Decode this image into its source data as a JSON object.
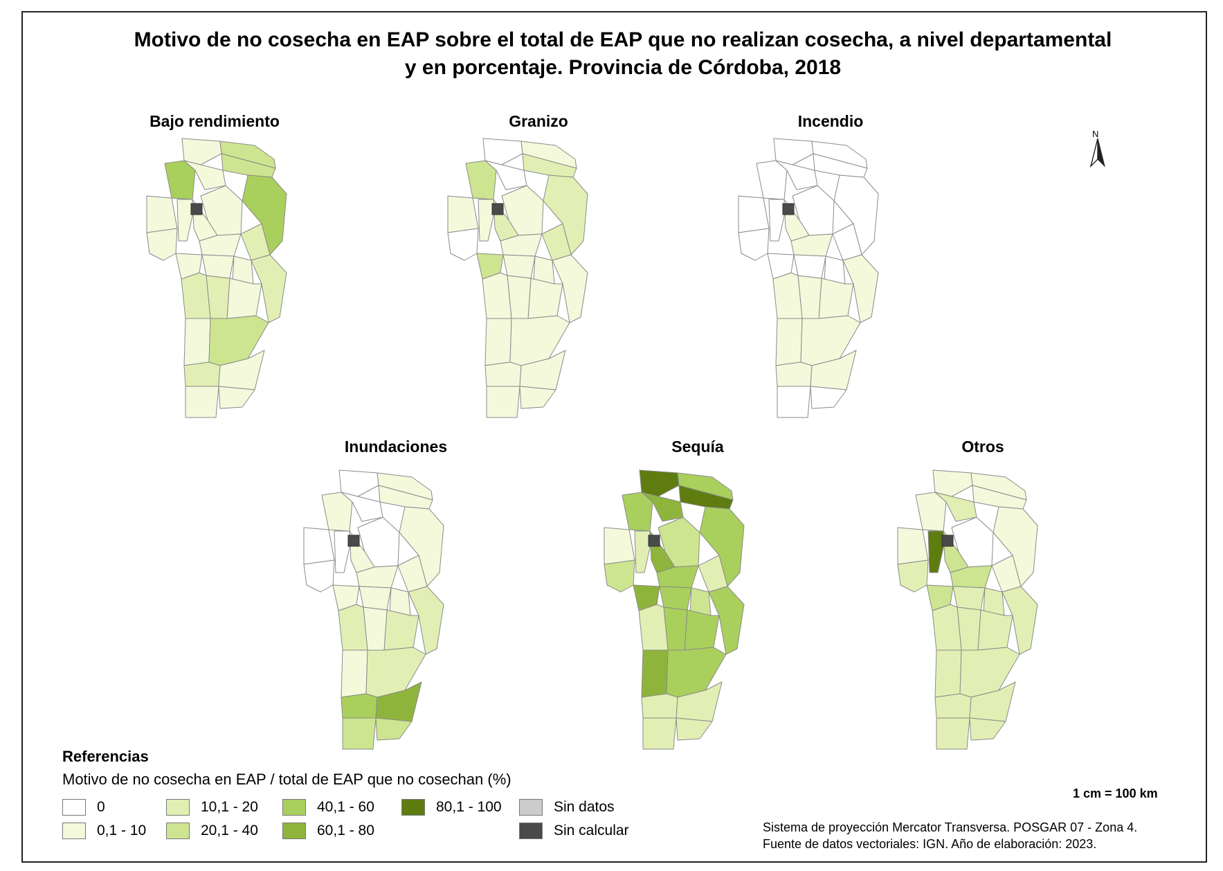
{
  "title": {
    "line1": "Motivo de no cosecha en EAP sobre el total de EAP que no realizan cosecha, a nivel departamental",
    "line2": "y en porcentaje. Provincia de Córdoba, 2018"
  },
  "palette": {
    "0": "#ffffff",
    "0,1 - 10": "#f4f9dc",
    "10,1 - 20": "#e2efb4",
    "20,1 - 40": "#cde590",
    "40,1 - 60": "#a9d05c",
    "60,1 - 80": "#8fb43c",
    "80,1 - 100": "#5e7c10",
    "Sin datos": "#cccccc",
    "Sin calcular": "#4a4a4a"
  },
  "maps": [
    {
      "title": "Bajo rendimiento",
      "classes": [
        "1",
        "3",
        "3",
        "4",
        "1",
        "4",
        "1",
        "1",
        "1",
        "1",
        "1",
        "1",
        "1",
        "2",
        "1",
        "1",
        "2",
        "1",
        "2",
        "2",
        "1",
        "3",
        "2",
        "1",
        "1",
        "1"
      ]
    },
    {
      "title": "Granizo",
      "classes": [
        "0",
        "1",
        "2",
        "3",
        "0",
        "2",
        "1",
        "1",
        "1",
        "2",
        "0",
        "1",
        "3",
        "2",
        "1",
        "1",
        "1",
        "1",
        "1",
        "1",
        "1",
        "1",
        "1",
        "1",
        "1",
        "1"
      ]
    },
    {
      "title": "Incendio",
      "classes": [
        "0",
        "0",
        "0",
        "0",
        "0",
        "0",
        "0",
        "0",
        "0",
        "1",
        "0",
        "1",
        "0",
        "0",
        "0",
        "0",
        "1",
        "1",
        "1",
        "1",
        "1",
        "1",
        "1",
        "1",
        "0",
        "0"
      ]
    },
    {
      "title": "Inundaciones",
      "classes": [
        "0",
        "1",
        "1",
        "1",
        "0",
        "1",
        "0",
        "0",
        "0",
        "1",
        "0",
        "1",
        "1",
        "1",
        "1",
        "1",
        "2",
        "2",
        "1",
        "2",
        "1",
        "2",
        "4",
        "5",
        "3",
        "3"
      ]
    },
    {
      "title": "Sequía",
      "classes": [
        "6",
        "4",
        "6",
        "4",
        "5",
        "4",
        "1",
        "2",
        "3",
        "5",
        "3",
        "4",
        "5",
        "2",
        "4",
        "3",
        "4",
        "4",
        "4",
        "2",
        "5",
        "4",
        "2",
        "2",
        "2",
        "2"
      ]
    },
    {
      "title": "Otros",
      "classes": [
        "1",
        "1",
        "1",
        "1",
        "2",
        "1",
        "1",
        "6",
        "0",
        "3",
        "2",
        "3",
        "3",
        "1",
        "2",
        "2",
        "2",
        "2",
        "2",
        "2",
        "2",
        "2",
        "2",
        "2",
        "2",
        "2"
      ]
    }
  ],
  "legend": {
    "title": "Referencias",
    "subtitle": "Motivo de no cosecha en EAP / total de EAP que no cosechan (%)",
    "items": [
      {
        "label": "0",
        "key": "0"
      },
      {
        "label": "0,1 - 10",
        "key": "0,1 - 10"
      },
      {
        "label": "10,1 - 20",
        "key": "10,1 - 20"
      },
      {
        "label": "20,1 - 40",
        "key": "20,1 - 40"
      },
      {
        "label": "40,1 - 60",
        "key": "40,1 - 60"
      },
      {
        "label": "60,1 - 80",
        "key": "60,1 - 80"
      },
      {
        "label": "80,1 - 100",
        "key": "80,1 - 100"
      },
      {
        "label": "Sin datos",
        "key": "Sin datos"
      },
      {
        "label": "Sin calcular",
        "key": "Sin calcular"
      }
    ]
  },
  "north_label": "N",
  "scale": "1 cm = 100 km",
  "credits": {
    "line1": "Sistema de proyección Mercator Transversa. POSGAR 07 - Zona 4.",
    "line2": "Fuente de datos vectoriales: IGN. Año de elaboración: 2023."
  }
}
